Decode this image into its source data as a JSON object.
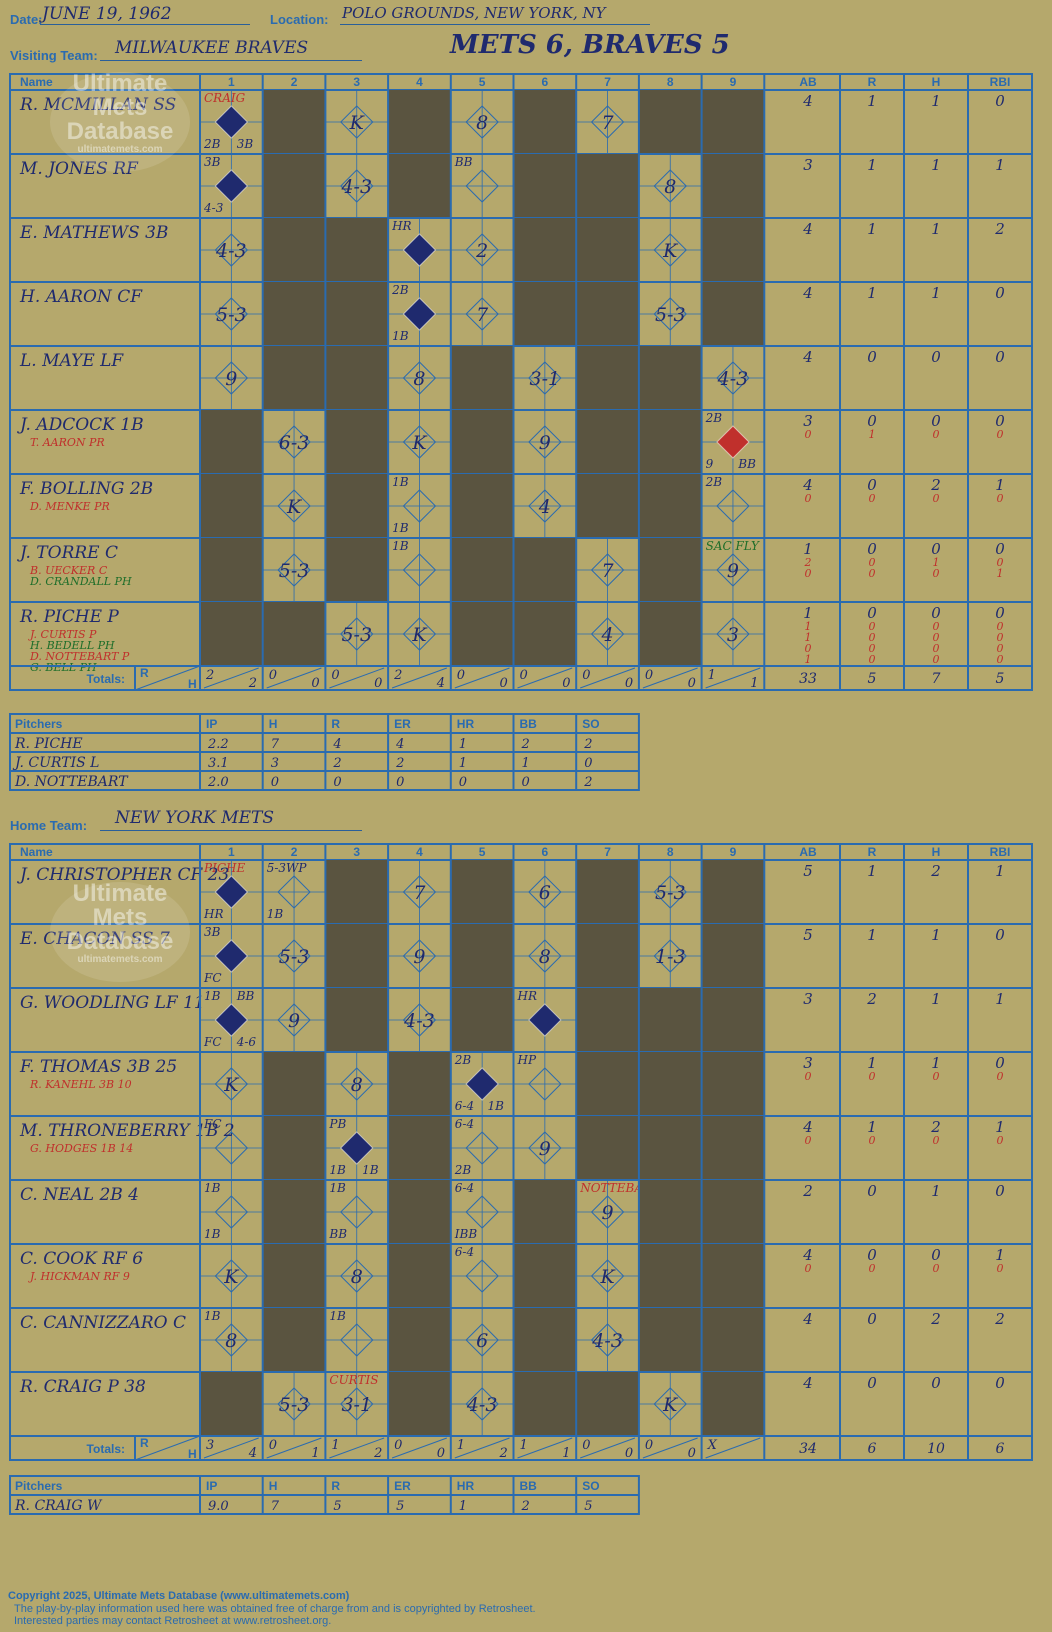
{
  "header": {
    "date_label": "Date:",
    "date": "JUNE 19, 1962",
    "location_label": "Location:",
    "location": "POLO GROUNDS, NEW YORK, NY",
    "title": "METS 6, BRAVES 5"
  },
  "visiting": {
    "team_label": "Visiting Team:",
    "team": "MILWAUKEE BRAVES",
    "batters": [
      {
        "name": "R. MCMILLAN SS",
        "subs": [],
        "ab": [
          "4"
        ],
        "r": [
          "1"
        ],
        "h": [
          "1"
        ],
        "rbi": [
          "0"
        ]
      },
      {
        "name": "M. JONES RF",
        "subs": [],
        "ab": [
          "3"
        ],
        "r": [
          "1"
        ],
        "h": [
          "1"
        ],
        "rbi": [
          "1"
        ]
      },
      {
        "name": "E. MATHEWS 3B",
        "subs": [],
        "ab": [
          "4"
        ],
        "r": [
          "1"
        ],
        "h": [
          "1"
        ],
        "rbi": [
          "2"
        ]
      },
      {
        "name": "H. AARON CF",
        "subs": [],
        "ab": [
          "4"
        ],
        "r": [
          "1"
        ],
        "h": [
          "1"
        ],
        "rbi": [
          "0"
        ]
      },
      {
        "name": "L. MAYE LF",
        "subs": [],
        "ab": [
          "4"
        ],
        "r": [
          "0"
        ],
        "h": [
          "0"
        ],
        "rbi": [
          "0"
        ]
      },
      {
        "name": "J. ADCOCK 1B",
        "subs": [
          "T. AARON PR"
        ],
        "ab": [
          "3",
          "0"
        ],
        "r": [
          "0",
          "1"
        ],
        "h": [
          "0",
          "0"
        ],
        "rbi": [
          "0",
          "0"
        ]
      },
      {
        "name": "F. BOLLING 2B",
        "subs": [
          "D. MENKE PR"
        ],
        "ab": [
          "4",
          "0"
        ],
        "r": [
          "0",
          "0"
        ],
        "h": [
          "2",
          "0"
        ],
        "rbi": [
          "1",
          "0"
        ]
      },
      {
        "name": "J. TORRE C",
        "subs": [
          "B. UECKER C",
          "D. CRANDALL PH"
        ],
        "ab": [
          "1",
          "2",
          "0"
        ],
        "r": [
          "0",
          "0",
          "0"
        ],
        "h": [
          "0",
          "1",
          "0"
        ],
        "rbi": [
          "0",
          "0",
          "1"
        ]
      },
      {
        "name": "R. PICHE P",
        "subs": [
          "J. CURTIS P",
          "H. BEDELL PH",
          "D. NOTTEBART P",
          "G. BELL PH"
        ],
        "ab": [
          "1",
          "1",
          "1",
          "0",
          "1"
        ],
        "r": [
          "0",
          "0",
          "0",
          "0",
          "0"
        ],
        "h": [
          "0",
          "0",
          "0",
          "0",
          "0"
        ],
        "rbi": [
          "0",
          "0",
          "0",
          "0",
          "0"
        ]
      }
    ],
    "cells": [
      [
        {
          "t": "",
          "dk": false,
          "run": true,
          "marks": [
            "CRAIG",
            "2B",
            "3B"
          ]
        },
        {
          "dk": true
        },
        {
          "t": "K"
        },
        {
          "dk": true
        },
        {
          "t": "8"
        },
        {
          "dk": true
        },
        {
          "t": "7"
        },
        {
          "dk": true
        },
        {
          "dk": true
        }
      ],
      [
        {
          "run": true,
          "marks": [
            "3B",
            "4-3"
          ]
        },
        {
          "dk": true
        },
        {
          "t": "4-3"
        },
        {
          "dk": true
        },
        {
          "t": "",
          "marks": [
            "BB"
          ]
        },
        {
          "dk": true
        },
        {
          "dk": true
        },
        {
          "t": "8"
        },
        {
          "dk": true
        }
      ],
      [
        {
          "t": "4-3"
        },
        {
          "dk": true
        },
        {
          "dk": true
        },
        {
          "run": true,
          "marks": [
            "HR"
          ]
        },
        {
          "t": "2"
        },
        {
          "dk": true
        },
        {
          "dk": true
        },
        {
          "t": "K"
        },
        {
          "dk": true
        }
      ],
      [
        {
          "t": "5-3"
        },
        {
          "dk": true
        },
        {
          "dk": true
        },
        {
          "run": true,
          "marks": [
            "2B",
            "1B"
          ]
        },
        {
          "t": "7"
        },
        {
          "dk": true
        },
        {
          "dk": true
        },
        {
          "t": "5-3"
        },
        {
          "dk": true
        }
      ],
      [
        {
          "t": "9"
        },
        {
          "dk": true
        },
        {
          "dk": true
        },
        {
          "t": "8"
        },
        {
          "dk": true
        },
        {
          "t": "3-1"
        },
        {
          "dk": true
        },
        {
          "dk": true
        },
        {
          "t": "4-3"
        }
      ],
      [
        {
          "dk": true
        },
        {
          "t": "6-3"
        },
        {
          "dk": true
        },
        {
          "t": "K"
        },
        {
          "dk": true
        },
        {
          "t": "9"
        },
        {
          "dk": true
        },
        {
          "dk": true
        },
        {
          "red": true,
          "marks": [
            "2B",
            "9",
            "BB"
          ]
        }
      ],
      [
        {
          "dk": true
        },
        {
          "t": "K"
        },
        {
          "dk": true
        },
        {
          "marks": [
            "1B",
            "1B"
          ]
        },
        {
          "dk": true
        },
        {
          "t": "4"
        },
        {
          "dk": true
        },
        {
          "dk": true
        },
        {
          "marks": [
            "2B"
          ]
        }
      ],
      [
        {
          "dk": true
        },
        {
          "t": "5-3"
        },
        {
          "dk": true
        },
        {
          "marks": [
            "1B"
          ]
        },
        {
          "dk": true
        },
        {
          "dk": true
        },
        {
          "t": "7"
        },
        {
          "dk": true
        },
        {
          "t": "9",
          "marks": [
            "SAC FLY"
          ]
        }
      ],
      [
        {
          "dk": true
        },
        {
          "dk": true
        },
        {
          "t": "5-3"
        },
        {
          "t": "K"
        },
        {
          "dk": true
        },
        {
          "dk": true
        },
        {
          "t": "4"
        },
        {
          "dk": true
        },
        {
          "t": "3"
        }
      ]
    ],
    "totals_label": "Totals:",
    "totals_r": [
      "2",
      "0",
      "0",
      "2",
      "0",
      "0",
      "0",
      "0",
      "1"
    ],
    "totals_h": [
      "2",
      "0",
      "0",
      "4",
      "0",
      "0",
      "0",
      "0",
      "1"
    ],
    "totals": {
      "ab": "33",
      "r": "5",
      "h": "7",
      "rbi": "5"
    },
    "pitchers": [
      {
        "name": "R. PICHE",
        "ip": "2.2",
        "h": "7",
        "r": "4",
        "er": "4",
        "hr": "1",
        "bb": "2",
        "so": "2"
      },
      {
        "name": "J. CURTIS  L",
        "ip": "3.1",
        "h": "3",
        "r": "2",
        "er": "2",
        "hr": "1",
        "bb": "1",
        "so": "0"
      },
      {
        "name": "D. NOTTEBART",
        "ip": "2.0",
        "h": "0",
        "r": "0",
        "er": "0",
        "hr": "0",
        "bb": "0",
        "so": "2"
      }
    ]
  },
  "home": {
    "team_label": "Home Team:",
    "team": "NEW YORK METS",
    "batters": [
      {
        "name": "J. CHRISTOPHER CF 23",
        "subs": [],
        "ab": [
          "5"
        ],
        "r": [
          "1"
        ],
        "h": [
          "2"
        ],
        "rbi": [
          "1"
        ]
      },
      {
        "name": "E. CHACON SS 7",
        "subs": [],
        "ab": [
          "5"
        ],
        "r": [
          "1"
        ],
        "h": [
          "1"
        ],
        "rbi": [
          "0"
        ]
      },
      {
        "name": "G. WOODLING LF 11",
        "subs": [],
        "ab": [
          "3"
        ],
        "r": [
          "2"
        ],
        "h": [
          "1"
        ],
        "rbi": [
          "1"
        ]
      },
      {
        "name": "F. THOMAS 3B 25",
        "subs": [
          "R. KANEHL 3B 10"
        ],
        "ab": [
          "3",
          "0"
        ],
        "r": [
          "1",
          "0"
        ],
        "h": [
          "1",
          "0"
        ],
        "rbi": [
          "0",
          "0"
        ]
      },
      {
        "name": "M. THRONEBERRY 1B 2",
        "subs": [
          "G. HODGES 1B 14"
        ],
        "ab": [
          "4",
          "0"
        ],
        "r": [
          "1",
          "0"
        ],
        "h": [
          "2",
          "0"
        ],
        "rbi": [
          "1",
          "0"
        ]
      },
      {
        "name": "C. NEAL 2B 4",
        "subs": [],
        "ab": [
          "2"
        ],
        "r": [
          "0"
        ],
        "h": [
          "1"
        ],
        "rbi": [
          "0"
        ]
      },
      {
        "name": "C. COOK RF 6",
        "subs": [
          "J. HICKMAN RF 9"
        ],
        "ab": [
          "4",
          "0"
        ],
        "r": [
          "0",
          "0"
        ],
        "h": [
          "0",
          "0"
        ],
        "rbi": [
          "1",
          "0"
        ]
      },
      {
        "name": "C. CANNIZZARO C",
        "subs": [],
        "ab": [
          "4"
        ],
        "r": [
          "0"
        ],
        "h": [
          "2"
        ],
        "rbi": [
          "2"
        ]
      },
      {
        "name": "R. CRAIG P 38",
        "subs": [],
        "ab": [
          "4"
        ],
        "r": [
          "0"
        ],
        "h": [
          "0"
        ],
        "rbi": [
          "0"
        ]
      }
    ],
    "cells": [
      [
        {
          "run": true,
          "marks": [
            "PICHE",
            "HR"
          ]
        },
        {
          "marks": [
            "5-3WP",
            "1B"
          ]
        },
        {
          "dk": true
        },
        {
          "t": "7"
        },
        {
          "dk": true
        },
        {
          "t": "6"
        },
        {
          "dk": true
        },
        {
          "t": "5-3"
        },
        {
          "dk": true
        }
      ],
      [
        {
          "run": true,
          "marks": [
            "3B",
            "FC"
          ]
        },
        {
          "t": "5-3"
        },
        {
          "dk": true
        },
        {
          "t": "9"
        },
        {
          "dk": true
        },
        {
          "t": "8"
        },
        {
          "dk": true
        },
        {
          "t": "1-3"
        },
        {
          "dk": true
        }
      ],
      [
        {
          "run": true,
          "marks": [
            "1B",
            "FC",
            "4-6",
            "BB"
          ]
        },
        {
          "t": "9"
        },
        {
          "dk": true
        },
        {
          "t": "4-3"
        },
        {
          "dk": true
        },
        {
          "run": true,
          "marks": [
            "HR"
          ]
        },
        {
          "dk": true
        },
        {
          "dk": true
        },
        {
          "dk": true
        }
      ],
      [
        {
          "t": "K"
        },
        {
          "dk": true
        },
        {
          "t": "8"
        },
        {
          "dk": true
        },
        {
          "run": true,
          "marks": [
            "2B",
            "6-4",
            "1B"
          ]
        },
        {
          "marks": [
            "HP"
          ]
        },
        {
          "dk": true
        },
        {
          "dk": true
        },
        {
          "dk": true
        }
      ],
      [
        {
          "marks": [
            "FC"
          ]
        },
        {
          "dk": true
        },
        {
          "run": true,
          "marks": [
            "PB",
            "1B",
            "1B"
          ]
        },
        {
          "dk": true
        },
        {
          "marks": [
            "6-4",
            "2B"
          ]
        },
        {
          "t": "9"
        },
        {
          "dk": true
        },
        {
          "dk": true
        },
        {
          "dk": true
        }
      ],
      [
        {
          "marks": [
            "1B",
            "1B"
          ]
        },
        {
          "dk": true
        },
        {
          "marks": [
            "1B",
            "BB"
          ]
        },
        {
          "dk": true
        },
        {
          "marks": [
            "6-4",
            "IBB"
          ]
        },
        {
          "dk": true
        },
        {
          "t": "9",
          "marks": [
            "NOTTEBART"
          ]
        },
        {
          "dk": true
        },
        {
          "dk": true
        }
      ],
      [
        {
          "t": "K"
        },
        {
          "dk": true
        },
        {
          "t": "8"
        },
        {
          "dk": true
        },
        {
          "marks": [
            "6-4"
          ]
        },
        {
          "dk": true
        },
        {
          "t": "K"
        },
        {
          "dk": true
        },
        {
          "dk": true
        }
      ],
      [
        {
          "t": "8",
          "marks": [
            "1B"
          ]
        },
        {
          "dk": true
        },
        {
          "marks": [
            "1B"
          ]
        },
        {
          "dk": true
        },
        {
          "t": "6"
        },
        {
          "dk": true
        },
        {
          "t": "4-3"
        },
        {
          "dk": true
        },
        {
          "dk": true
        }
      ],
      [
        {
          "dk": true
        },
        {
          "t": "5-3"
        },
        {
          "t": "3-1",
          "marks": [
            "CURTIS"
          ]
        },
        {
          "dk": true
        },
        {
          "t": "4-3"
        },
        {
          "dk": true
        },
        {
          "dk": true
        },
        {
          "t": "K"
        },
        {
          "dk": true
        }
      ]
    ],
    "totals_label": "Totals:",
    "totals_r": [
      "3",
      "0",
      "1",
      "0",
      "1",
      "1",
      "0",
      "0",
      "X"
    ],
    "totals_h": [
      "4",
      "1",
      "2",
      "0",
      "2",
      "1",
      "0",
      "0",
      ""
    ],
    "totals": {
      "ab": "34",
      "r": "6",
      "h": "10",
      "rbi": "6"
    },
    "pitchers": [
      {
        "name": "R. CRAIG  W",
        "ip": "9.0",
        "h": "7",
        "r": "5",
        "er": "5",
        "hr": "1",
        "bb": "2",
        "so": "5"
      }
    ]
  },
  "columns": {
    "name": "Name",
    "innings": [
      "1",
      "2",
      "3",
      "4",
      "5",
      "6",
      "7",
      "8",
      "9"
    ],
    "ab": "AB",
    "r": "R",
    "h": "H",
    "rbi": "RBI",
    "totals_r": "R",
    "totals_h": "H"
  },
  "pitch_columns": {
    "name": "Pitchers",
    "ip": "IP",
    "h": "H",
    "r": "R",
    "er": "ER",
    "hr": "HR",
    "bb": "BB",
    "so": "SO"
  },
  "watermark": {
    "line1": "Ultimate",
    "line2": "Mets",
    "line3": "Database",
    "url": "ultimatemets.com"
  },
  "footer": {
    "line1": "Copyright 2025, Ultimate Mets Database (www.ultimatemets.com)",
    "line2": "The play-by-play information used here was obtained free of charge from and is copyrighted by Retrosheet.",
    "line3": "Interested parties may contact Retrosheet at www.retrosheet.org."
  },
  "colors": {
    "background": "#b5a86c",
    "grid": "#2a6bb0",
    "dark_cell": "#5a5440",
    "ink": "#1f2a6e",
    "red": "#c0302c",
    "run_diamond": "#1f2a6e"
  }
}
